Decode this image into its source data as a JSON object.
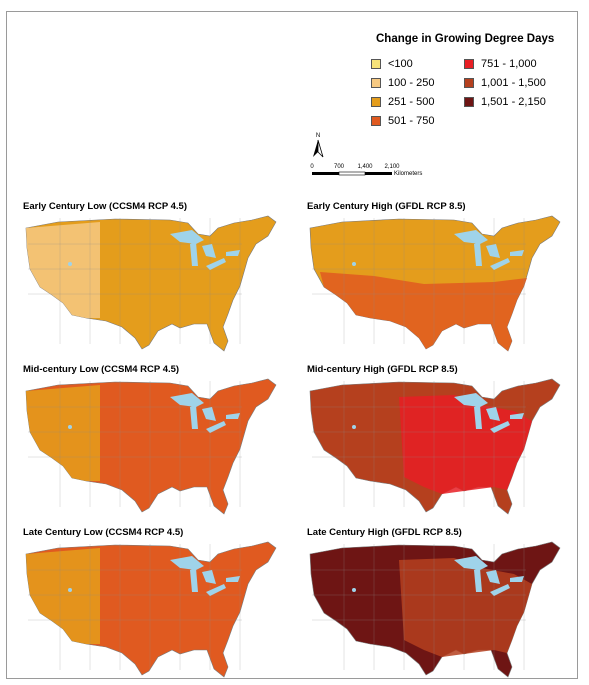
{
  "legend": {
    "title": "Change in Growing Degree Days",
    "items": [
      {
        "label": "<100",
        "color": "#f6e37a"
      },
      {
        "label": "100 - 250",
        "color": "#f6c982"
      },
      {
        "label": "251 - 500",
        "color": "#e49d1c"
      },
      {
        "label": "501 - 750",
        "color": "#e05a20"
      },
      {
        "label": "751 - 1,000",
        "color": "#e81e24"
      },
      {
        "label": "1,001 - 1,500",
        "color": "#b5401e"
      },
      {
        "label": "1,501 - 2,150",
        "color": "#6e1514"
      }
    ]
  },
  "north_arrow": {
    "label": "N"
  },
  "scale_bar": {
    "ticks": [
      "0",
      "700",
      "1,400",
      "2,100"
    ],
    "unit": "Kilometers"
  },
  "maps": [
    {
      "title": "Early Century Low (CCSM4 RCP 4.5)",
      "dominant": "251 - 500",
      "secondary": "100 - 250"
    },
    {
      "title": "Early Century High (GFDL RCP 8.5)",
      "dominant": "251 - 500",
      "secondary": "501 - 750"
    },
    {
      "title": "Mid-century Low (CCSM4 RCP 4.5)",
      "dominant": "501 - 750",
      "secondary": "251 - 500"
    },
    {
      "title": "Mid-century High (GFDL RCP 8.5)",
      "dominant": "1,001 - 1,500",
      "secondary": "751 - 1,000"
    },
    {
      "title": "Late Century Low (CCSM4 RCP 4.5)",
      "dominant": "501 - 750",
      "secondary": "251 - 500"
    },
    {
      "title": "Late Century High (GFDL RCP 8.5)",
      "dominant": "1,501 - 2,150",
      "secondary": "1,001 - 1,500"
    }
  ],
  "colors": {
    "lakes": "#9fd3ea",
    "borders": "#8a8a8a"
  }
}
